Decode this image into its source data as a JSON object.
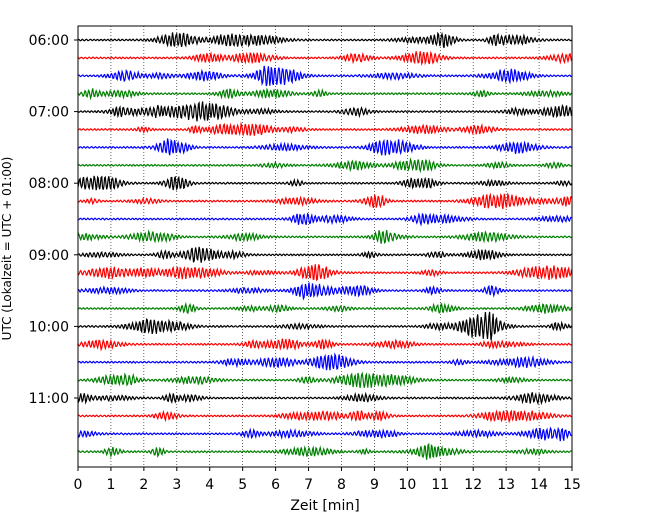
{
  "chart_data": {
    "type": "line",
    "title": "",
    "xlabel": "Zeit  [min]",
    "ylabel": "UTC (Lokalzeit = UTC + 01:00)",
    "xlim": [
      0,
      15
    ],
    "x_ticks": [
      "0",
      "1",
      "2",
      "3",
      "4",
      "5",
      "6",
      "7",
      "8",
      "9",
      "10",
      "11",
      "12",
      "13",
      "14",
      "15"
    ],
    "y_ticks": [
      "06:00",
      "07:00",
      "08:00",
      "09:00",
      "10:00",
      "11:00"
    ],
    "grid": "vertical dotted",
    "trace_interval_minutes": 15,
    "start_time": "06:00",
    "trace_count": 24,
    "colors": [
      "#000000",
      "#ff0000",
      "#0000ff",
      "#008000"
    ]
  }
}
